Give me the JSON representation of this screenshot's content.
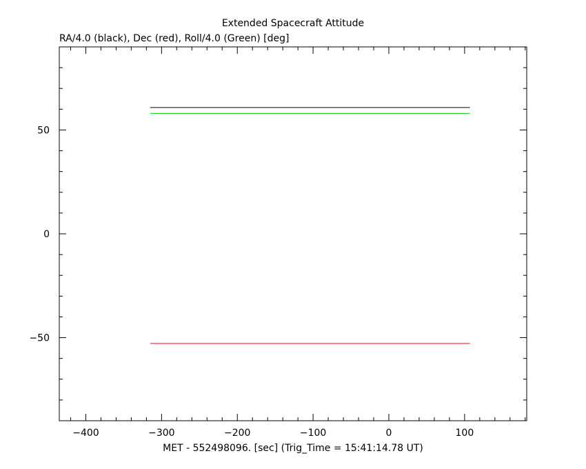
{
  "chart_data": {
    "type": "line",
    "title": "Extended Spacecraft Attitude",
    "subtitle": "RA/4.0 (black), Dec (red), Roll/4.0 (Green) [deg]",
    "xlabel": "MET - 552498096. [sec] (Trig_Time = 15:41:14.78 UT)",
    "ylabel": "",
    "xlim": [
      -435,
      182
    ],
    "ylim": [
      -90,
      90
    ],
    "x_ticks": [
      -400,
      -300,
      -200,
      -100,
      0,
      100
    ],
    "x_tick_labels": [
      "−400",
      "−300",
      "−200",
      "−100",
      "0",
      "100"
    ],
    "y_ticks": [
      -50,
      0,
      50
    ],
    "y_tick_labels": [
      "−50",
      "0",
      "50"
    ],
    "x_minor_step": 20,
    "y_minor_step": 10,
    "grid": false,
    "series": [
      {
        "color": "#000000",
        "x": [
          -315,
          107
        ],
        "y": [
          60.8,
          60.8
        ]
      },
      {
        "color": "#00cc00",
        "x": [
          -315,
          107
        ],
        "y": [
          58.0,
          58.0
        ]
      },
      {
        "color": "#ff0000",
        "x": [
          -315,
          107
        ],
        "y": [
          -52.8,
          -52.8
        ]
      }
    ]
  }
}
